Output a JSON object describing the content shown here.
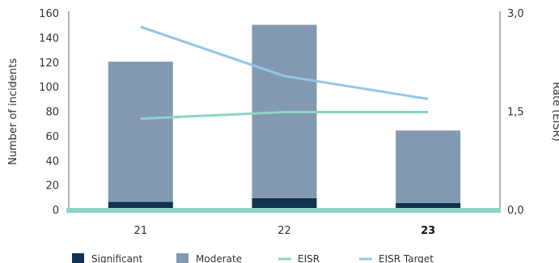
{
  "chart_data": {
    "type": "bar",
    "categories": [
      "21",
      "22",
      "23"
    ],
    "bold_categories": [
      "23"
    ],
    "stacked": true,
    "series": [
      {
        "name": "Significant",
        "kind": "bar",
        "axis": "left",
        "color": "#0f3350",
        "values": [
          7,
          10,
          6
        ]
      },
      {
        "name": "Moderate",
        "kind": "bar",
        "axis": "left",
        "color": "#8399b1",
        "values": [
          114,
          141,
          59
        ]
      },
      {
        "name": "EISR",
        "kind": "line",
        "axis": "right",
        "color": "#8cd4c6",
        "values": [
          1.4,
          1.5,
          1.5
        ]
      },
      {
        "name": "EISR Target",
        "kind": "line",
        "axis": "right",
        "color": "#93c6e6",
        "values": [
          2.8,
          2.05,
          1.7
        ]
      }
    ],
    "ylabel": "Number of incidents",
    "ylim": [
      0,
      160
    ],
    "yticks": [
      0,
      20,
      40,
      60,
      80,
      100,
      120,
      140,
      160
    ],
    "y2label": "Rate (EISR)",
    "y2lim": [
      0,
      3
    ],
    "y2ticks": [
      "0,0",
      "1,5",
      "3,0"
    ],
    "y2tick_values": [
      0,
      1.5,
      3
    ],
    "baseline_color": "#8cd4c6",
    "legend": [
      "Significant",
      "Moderate",
      "EISR",
      "EISR Target"
    ],
    "legend_position": "bottom"
  }
}
